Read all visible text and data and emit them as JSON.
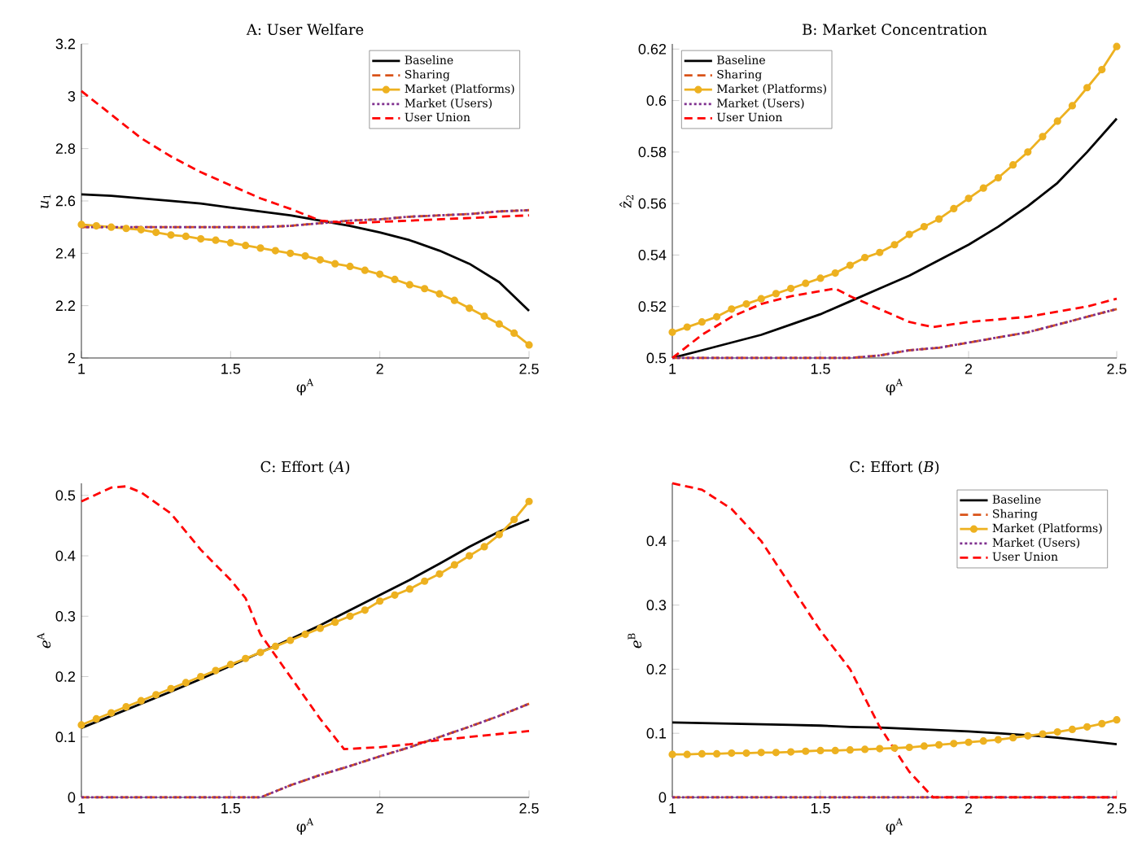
{
  "chart_data": [
    {
      "type": "line",
      "title": "A: User Welfare",
      "xlabel": "φ$^{A}$",
      "ylabel": "*u*$_{1}$",
      "xlim": [
        1,
        2.5
      ],
      "xticks": [
        1,
        1.5,
        2,
        2.5
      ],
      "ylim": [
        2,
        3.2
      ],
      "yticks": [
        2,
        2.2,
        2.4,
        2.6,
        2.8,
        3,
        3.2
      ],
      "legend": "top right",
      "x": [
        1,
        1.1,
        1.2,
        1.3,
        1.4,
        1.5,
        1.6,
        1.7,
        1.8,
        1.9,
        2,
        2.1,
        2.2,
        2.3,
        2.4,
        2.5
      ],
      "series": [
        {
          "name": "Baseline",
          "color": "#000000",
          "line_style": "solid",
          "marker": "none",
          "values": [
            2.625,
            2.62,
            2.61,
            2.6,
            2.59,
            2.575,
            2.56,
            2.545,
            2.525,
            2.505,
            2.48,
            2.45,
            2.41,
            2.36,
            2.29,
            2.18
          ]
        },
        {
          "name": "Sharing",
          "color": "#d95319",
          "line_style": "dashed",
          "marker": "none",
          "values": [
            2.5,
            2.5,
            2.5,
            2.5,
            2.5,
            2.5,
            2.5,
            2.505,
            2.515,
            2.525,
            2.53,
            2.54,
            2.545,
            2.55,
            2.56,
            2.565
          ]
        },
        {
          "name": "Market (Platforms)",
          "color": "#edb120",
          "line_style": "solid",
          "marker": "circle",
          "x": [
            1,
            1.05,
            1.1,
            1.15,
            1.2,
            1.25,
            1.3,
            1.35,
            1.4,
            1.45,
            1.5,
            1.55,
            1.6,
            1.65,
            1.7,
            1.75,
            1.8,
            1.85,
            1.9,
            1.95,
            2,
            2.05,
            2.1,
            2.15,
            2.2,
            2.25,
            2.3,
            2.35,
            2.4,
            2.45,
            2.5
          ],
          "values": [
            2.51,
            2.505,
            2.5,
            2.495,
            2.49,
            2.48,
            2.47,
            2.465,
            2.455,
            2.45,
            2.44,
            2.43,
            2.42,
            2.41,
            2.4,
            2.39,
            2.375,
            2.36,
            2.35,
            2.335,
            2.32,
            2.3,
            2.28,
            2.265,
            2.245,
            2.22,
            2.19,
            2.16,
            2.13,
            2.095,
            2.05
          ]
        },
        {
          "name": "Market (Users)",
          "color": "#7e2f8e",
          "line_style": "dotted",
          "marker": "none",
          "values": [
            2.5,
            2.5,
            2.5,
            2.5,
            2.5,
            2.5,
            2.5,
            2.505,
            2.515,
            2.525,
            2.53,
            2.54,
            2.545,
            2.55,
            2.56,
            2.565
          ]
        },
        {
          "name": "User Union",
          "color": "#ff0000",
          "line_style": "dashed",
          "marker": "none",
          "values": [
            3.02,
            2.93,
            2.84,
            2.77,
            2.71,
            2.66,
            2.61,
            2.57,
            2.525,
            2.515,
            2.52,
            2.525,
            2.53,
            2.535,
            2.54,
            2.545
          ]
        }
      ]
    },
    {
      "type": "line",
      "title": "B: Market Concentration",
      "xlabel": "φ$^{A}$",
      "ylabel": "ẑ$_{2}$",
      "xlim": [
        1,
        2.5
      ],
      "xticks": [
        1,
        1.5,
        2,
        2.5
      ],
      "ylim": [
        0.5,
        0.622
      ],
      "yticks": [
        0.5,
        0.52,
        0.54,
        0.56,
        0.58,
        0.6,
        0.62
      ],
      "legend": "top left",
      "x": [
        1,
        1.1,
        1.2,
        1.3,
        1.4,
        1.5,
        1.6,
        1.7,
        1.8,
        1.9,
        2,
        2.1,
        2.2,
        2.3,
        2.4,
        2.5
      ],
      "series": [
        {
          "name": "Baseline",
          "color": "#000000",
          "line_style": "solid",
          "marker": "none",
          "values": [
            0.5,
            0.503,
            0.506,
            0.509,
            0.513,
            0.517,
            0.522,
            0.527,
            0.532,
            0.538,
            0.544,
            0.551,
            0.559,
            0.568,
            0.58,
            0.593
          ]
        },
        {
          "name": "Sharing",
          "color": "#d95319",
          "line_style": "dashed",
          "marker": "none",
          "values": [
            0.5,
            0.5,
            0.5,
            0.5,
            0.5,
            0.5,
            0.5,
            0.501,
            0.503,
            0.504,
            0.506,
            0.508,
            0.51,
            0.513,
            0.516,
            0.519
          ]
        },
        {
          "name": "Market (Platforms)",
          "color": "#edb120",
          "line_style": "solid",
          "marker": "circle",
          "x": [
            1,
            1.05,
            1.1,
            1.15,
            1.2,
            1.25,
            1.3,
            1.35,
            1.4,
            1.45,
            1.5,
            1.55,
            1.6,
            1.65,
            1.7,
            1.75,
            1.8,
            1.85,
            1.9,
            1.95,
            2,
            2.05,
            2.1,
            2.15,
            2.2,
            2.25,
            2.3,
            2.35,
            2.4,
            2.45,
            2.5
          ],
          "values": [
            0.51,
            0.512,
            0.514,
            0.516,
            0.519,
            0.521,
            0.523,
            0.525,
            0.527,
            0.529,
            0.531,
            0.533,
            0.536,
            0.539,
            0.541,
            0.544,
            0.548,
            0.551,
            0.554,
            0.558,
            0.562,
            0.566,
            0.57,
            0.575,
            0.58,
            0.586,
            0.592,
            0.598,
            0.605,
            0.612,
            0.621
          ]
        },
        {
          "name": "Market (Users)",
          "color": "#7e2f8e",
          "line_style": "dotted",
          "marker": "none",
          "values": [
            0.5,
            0.5,
            0.5,
            0.5,
            0.5,
            0.5,
            0.5,
            0.501,
            0.503,
            0.504,
            0.506,
            0.508,
            0.51,
            0.513,
            0.516,
            0.519
          ]
        },
        {
          "name": "User Union",
          "color": "#ff0000",
          "line_style": "dashed",
          "marker": "none",
          "x": [
            1,
            1.1,
            1.2,
            1.3,
            1.4,
            1.5,
            1.55,
            1.6,
            1.7,
            1.8,
            1.88,
            2,
            2.1,
            2.2,
            2.3,
            2.4,
            2.5
          ],
          "values": [
            0.5,
            0.509,
            0.516,
            0.521,
            0.524,
            0.526,
            0.527,
            0.524,
            0.519,
            0.514,
            0.512,
            0.514,
            0.515,
            0.516,
            0.518,
            0.52,
            0.523
          ]
        }
      ]
    },
    {
      "type": "line",
      "title": "C: Effort (*A*)",
      "xlabel": "φ$^{A}$",
      "ylabel": "*e*$^{A}$",
      "xlim": [
        1,
        2.5
      ],
      "xticks": [
        1,
        1.5,
        2,
        2.5
      ],
      "ylim": [
        0,
        0.52
      ],
      "yticks": [
        0,
        0.1,
        0.2,
        0.3,
        0.4,
        0.5
      ],
      "x": [
        1,
        1.1,
        1.2,
        1.3,
        1.4,
        1.5,
        1.6,
        1.7,
        1.8,
        1.9,
        2,
        2.1,
        2.2,
        2.3,
        2.4,
        2.5
      ],
      "series": [
        {
          "color": "#000000",
          "line_style": "solid",
          "marker": "none",
          "values": [
            0.115,
            0.135,
            0.155,
            0.175,
            0.196,
            0.218,
            0.24,
            0.262,
            0.285,
            0.31,
            0.335,
            0.36,
            0.387,
            0.415,
            0.44,
            0.46
          ]
        },
        {
          "color": "#d95319",
          "line_style": "dashed",
          "marker": "none",
          "values": [
            0,
            0,
            0,
            0,
            0,
            0,
            0,
            0.02,
            0.037,
            0.052,
            0.068,
            0.083,
            0.1,
            0.117,
            0.135,
            0.155
          ]
        },
        {
          "color": "#edb120",
          "line_style": "solid",
          "marker": "circle",
          "x": [
            1,
            1.05,
            1.1,
            1.15,
            1.2,
            1.25,
            1.3,
            1.35,
            1.4,
            1.45,
            1.5,
            1.55,
            1.6,
            1.65,
            1.7,
            1.75,
            1.8,
            1.85,
            1.9,
            1.95,
            2,
            2.05,
            2.1,
            2.15,
            2.2,
            2.25,
            2.3,
            2.35,
            2.4,
            2.45,
            2.5
          ],
          "values": [
            0.12,
            0.13,
            0.14,
            0.15,
            0.16,
            0.17,
            0.18,
            0.19,
            0.2,
            0.21,
            0.22,
            0.23,
            0.24,
            0.25,
            0.26,
            0.27,
            0.28,
            0.29,
            0.3,
            0.31,
            0.325,
            0.335,
            0.345,
            0.358,
            0.37,
            0.385,
            0.4,
            0.415,
            0.435,
            0.46,
            0.49
          ]
        },
        {
          "color": "#7e2f8e",
          "line_style": "dotted",
          "marker": "none",
          "values": [
            0,
            0,
            0,
            0,
            0,
            0,
            0,
            0.02,
            0.037,
            0.052,
            0.068,
            0.083,
            0.1,
            0.117,
            0.135,
            0.155
          ]
        },
        {
          "color": "#ff0000",
          "line_style": "dashed",
          "marker": "none",
          "x": [
            1,
            1.1,
            1.15,
            1.2,
            1.3,
            1.4,
            1.5,
            1.55,
            1.6,
            1.7,
            1.8,
            1.88,
            2,
            2.1,
            2.2,
            2.3,
            2.4,
            2.5
          ],
          "values": [
            0.49,
            0.513,
            0.515,
            0.505,
            0.47,
            0.41,
            0.36,
            0.33,
            0.27,
            0.2,
            0.13,
            0.08,
            0.083,
            0.088,
            0.095,
            0.1,
            0.105,
            0.11
          ]
        }
      ]
    },
    {
      "type": "line",
      "title": "C: Effort (*B*)",
      "xlabel": "φ$^{A}$",
      "ylabel": "*e*$^{B}$",
      "xlim": [
        1,
        2.5
      ],
      "xticks": [
        1,
        1.5,
        2,
        2.5
      ],
      "ylim": [
        0,
        0.49
      ],
      "yticks": [
        0,
        0.1,
        0.2,
        0.3,
        0.4
      ],
      "legend": "top right",
      "x": [
        1,
        1.1,
        1.2,
        1.3,
        1.4,
        1.5,
        1.6,
        1.7,
        1.8,
        1.9,
        2,
        2.1,
        2.2,
        2.3,
        2.4,
        2.5
      ],
      "series": [
        {
          "name": "Baseline",
          "color": "#000000",
          "line_style": "solid",
          "marker": "none",
          "values": [
            0.117,
            0.116,
            0.115,
            0.114,
            0.113,
            0.112,
            0.11,
            0.109,
            0.107,
            0.105,
            0.103,
            0.1,
            0.097,
            0.093,
            0.088,
            0.083
          ]
        },
        {
          "name": "Sharing",
          "color": "#d95319",
          "line_style": "dashed",
          "marker": "none",
          "values": [
            0,
            0,
            0,
            0,
            0,
            0,
            0,
            0,
            0,
            0,
            0,
            0,
            0,
            0,
            0,
            0
          ]
        },
        {
          "name": "Market (Platforms)",
          "color": "#edb120",
          "line_style": "solid",
          "marker": "circle",
          "x": [
            1,
            1.05,
            1.1,
            1.15,
            1.2,
            1.25,
            1.3,
            1.35,
            1.4,
            1.45,
            1.5,
            1.55,
            1.6,
            1.65,
            1.7,
            1.75,
            1.8,
            1.85,
            1.9,
            1.95,
            2,
            2.05,
            2.1,
            2.15,
            2.2,
            2.25,
            2.3,
            2.35,
            2.4,
            2.45,
            2.5
          ],
          "values": [
            0.067,
            0.067,
            0.068,
            0.068,
            0.069,
            0.069,
            0.07,
            0.07,
            0.071,
            0.072,
            0.073,
            0.073,
            0.074,
            0.075,
            0.076,
            0.077,
            0.078,
            0.08,
            0.082,
            0.084,
            0.086,
            0.088,
            0.09,
            0.093,
            0.096,
            0.099,
            0.102,
            0.106,
            0.11,
            0.115,
            0.121
          ]
        },
        {
          "name": "Market (Users)",
          "color": "#7e2f8e",
          "line_style": "dotted",
          "marker": "none",
          "values": [
            0,
            0,
            0,
            0,
            0,
            0,
            0,
            0,
            0,
            0,
            0,
            0,
            0,
            0,
            0,
            0
          ]
        },
        {
          "name": "User Union",
          "color": "#ff0000",
          "line_style": "dashed",
          "marker": "none",
          "x": [
            1,
            1.1,
            1.2,
            1.3,
            1.4,
            1.5,
            1.6,
            1.7,
            1.8,
            1.88,
            2,
            2.1,
            2.2,
            2.3,
            2.4,
            2.5
          ],
          "values": [
            0.49,
            0.48,
            0.45,
            0.4,
            0.33,
            0.26,
            0.2,
            0.11,
            0.04,
            0,
            0,
            0,
            0,
            0,
            0,
            0
          ]
        }
      ]
    }
  ]
}
